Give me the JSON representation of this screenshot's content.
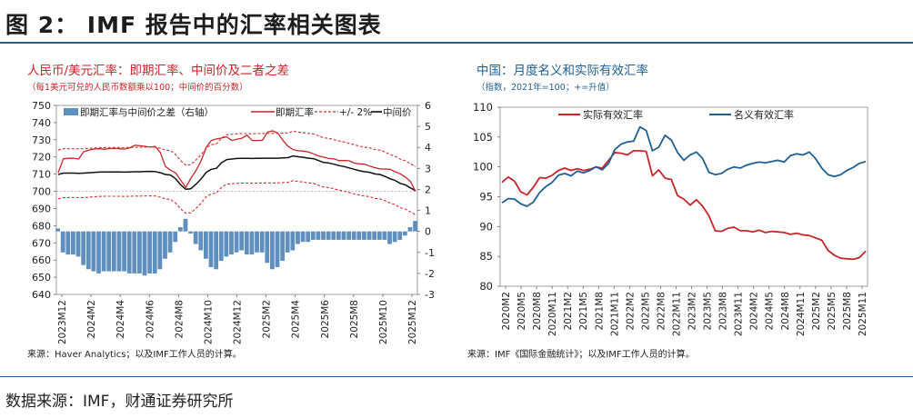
{
  "header": {
    "title": "图 2： IMF 报告中的汇率相关图表"
  },
  "footer": {
    "source": "数据来源：IMF，财通证券研究所"
  },
  "colors": {
    "accent_blue": "#1f5f96",
    "red": "#c8262a",
    "black": "#111111",
    "bar_blue": "#5e8fbf",
    "dashed_red": "#d0302e"
  },
  "chart_data": [
    {
      "type": "line",
      "title": "人民币/美元汇率：即期汇率、中间价及二者之差",
      "subtitle": "（每1美元可兑的人民币数额乘以100；中间价的百分数）",
      "source": "来源：Haver Analytics；以及IMF工作人员的计算。",
      "xlabel": "",
      "ylabel": "",
      "ylim": [
        640,
        750
      ],
      "y2lim": [
        -3,
        6
      ],
      "yticks": [
        "750",
        "740",
        "730",
        "720",
        "710",
        "700",
        "690",
        "680",
        "670",
        "660",
        "650",
        "640"
      ],
      "y2ticks": [
        "6",
        "5",
        "4",
        "3",
        "2",
        "1",
        "0",
        "-1",
        "-2",
        "-3"
      ],
      "xticks": [
        "2023M12",
        "2024M2",
        "2024M4",
        "2024M6",
        "2024M8",
        "2024M10",
        "2024M12",
        "2025M2",
        "2025M4",
        "2025M6",
        "2025M8",
        "2025M10",
        "2025M12"
      ],
      "legend": [
        "即期汇率与中间价之差（右轴）",
        "即期汇率",
        "+/- 2%",
        "中间价"
      ],
      "reference_line": 700,
      "series": [
        {
          "name": "中间价",
          "color": "#111111",
          "style": "solid",
          "axis": "left",
          "values": [
            709.8,
            710.6,
            710.6,
            710.6,
            710.5,
            710.6,
            710.8,
            711.0,
            711.2,
            711.3,
            711.3,
            711.3,
            711.3,
            711.2,
            711.3,
            711.4,
            711.4,
            711.5,
            711.6,
            711.5,
            710.8,
            709.8,
            709.5,
            707.3,
            703.8,
            701.2,
            701.5,
            704.2,
            707.2,
            711.1,
            712.8,
            713.4,
            716.7,
            718.5,
            718.8,
            719.1,
            719.2,
            719.2,
            719.1,
            719.2,
            719.3,
            719.3,
            719.3,
            719.3,
            719.5,
            719.6,
            720.6,
            720.1,
            719.8,
            719.3,
            719.0,
            717.9,
            716.8,
            716.5,
            715.8,
            715.0,
            714.4,
            713.6,
            712.8,
            712.0,
            711.4,
            711.1,
            710.1,
            709.8,
            708.7,
            707.3,
            706.3,
            704.6,
            703.7,
            702.0,
            700.4
          ]
        },
        {
          "name": "即期汇率",
          "color": "#c8262a",
          "style": "solid",
          "axis": "left",
          "values": [
            710.8,
            718.9,
            719.2,
            719.3,
            718.8,
            723.1,
            724.0,
            724.6,
            724.8,
            724.5,
            724.9,
            725.0,
            724.8,
            724.6,
            725.3,
            726.8,
            726.5,
            726.2,
            725.7,
            726.1,
            722.6,
            714.5,
            712.3,
            710.7,
            706.4,
            702.3,
            707.7,
            712.2,
            717.8,
            725.6,
            729.6,
            730.5,
            731.0,
            731.7,
            729.6,
            730.3,
            730.9,
            732.7,
            729.6,
            729.6,
            729.7,
            734.5,
            735.2,
            734.0,
            729.7,
            726.3,
            724.3,
            723.6,
            723.4,
            722.9,
            721.8,
            720.6,
            719.9,
            719.1,
            718.9,
            717.9,
            717.9,
            717.8,
            716.4,
            716.0,
            715.8,
            714.7,
            713.8,
            713.1,
            713.0,
            712.8,
            711.4,
            710.2,
            708.3,
            705.7,
            700.0
          ]
        },
        {
          "name": "+/- 2%",
          "color": "#d0302e",
          "style": "dashed",
          "axis": "left",
          "values": [
            724.0,
            724.8,
            724.8,
            724.8,
            724.7,
            724.8,
            725.0,
            725.2,
            725.4,
            725.5,
            725.5,
            725.5,
            725.5,
            725.4,
            725.5,
            725.6,
            725.6,
            725.7,
            725.8,
            725.7,
            725.0,
            724.0,
            723.7,
            721.4,
            717.9,
            715.2,
            715.5,
            718.3,
            721.3,
            725.3,
            727.1,
            727.7,
            731.0,
            732.9,
            733.2,
            733.5,
            733.6,
            733.6,
            733.5,
            733.6,
            733.7,
            733.7,
            733.7,
            733.7,
            733.9,
            734.0,
            735.0,
            734.5,
            734.2,
            733.7,
            733.4,
            732.3,
            731.1,
            730.8,
            730.1,
            729.3,
            728.7,
            727.9,
            727.1,
            726.3,
            725.6,
            725.3,
            724.3,
            724.0,
            722.9,
            721.4,
            720.4,
            718.7,
            717.8,
            716.0,
            714.4
          ]
        },
        {
          "name": "-2%",
          "color": "#d0302e",
          "style": "dashed",
          "axis": "left",
          "values": [
            695.6,
            696.4,
            696.4,
            696.4,
            696.3,
            696.4,
            696.6,
            696.8,
            697.0,
            697.1,
            697.1,
            697.1,
            697.1,
            697.0,
            697.1,
            697.2,
            697.2,
            697.3,
            697.4,
            697.3,
            696.6,
            695.6,
            695.3,
            693.2,
            689.7,
            687.2,
            687.5,
            690.1,
            693.1,
            696.9,
            698.5,
            699.1,
            702.4,
            704.1,
            704.4,
            704.7,
            704.8,
            704.8,
            704.7,
            704.8,
            704.9,
            704.9,
            704.9,
            704.9,
            705.1,
            705.2,
            706.2,
            705.7,
            705.4,
            704.9,
            704.6,
            703.5,
            702.5,
            702.2,
            701.5,
            700.7,
            700.1,
            699.3,
            698.5,
            697.8,
            697.2,
            696.9,
            695.9,
            695.6,
            694.5,
            693.2,
            692.2,
            690.5,
            689.6,
            688.0,
            686.4
          ]
        },
        {
          "name": "即期汇率与中间价之差（右轴）",
          "color": "#5e8fbf",
          "type": "bar",
          "axis": "right",
          "values": [
            0.14,
            -1.0,
            -1.1,
            -1.1,
            -1.2,
            -1.6,
            -1.8,
            -1.9,
            -2.0,
            -1.9,
            -1.9,
            -1.9,
            -1.9,
            -1.9,
            -2.0,
            -2.0,
            -2.0,
            -2.1,
            -2.0,
            -2.0,
            -1.8,
            -1.3,
            -1.0,
            -0.5,
            0.2,
            0.6,
            -0.1,
            -0.6,
            -0.9,
            -1.3,
            -1.7,
            -1.8,
            -1.4,
            -1.2,
            -1.1,
            -1.0,
            -0.9,
            -1.1,
            -1.1,
            -1.0,
            -1.0,
            -1.5,
            -1.8,
            -1.7,
            -1.4,
            -1.0,
            -0.9,
            -0.6,
            -0.5,
            -0.5,
            -0.4,
            -0.4,
            -0.4,
            -0.4,
            -0.4,
            -0.4,
            -0.4,
            -0.4,
            -0.4,
            -0.4,
            -0.4,
            -0.4,
            -0.4,
            -0.4,
            -0.4,
            -0.6,
            -0.5,
            -0.4,
            -0.2,
            0.2,
            0.5
          ]
        }
      ]
    },
    {
      "type": "line",
      "title": "中国：月度名义和实际有效汇率",
      "subtitle": "（指数，2021年=100；+=升值）",
      "source": "来源：IMF《国际金融统计》；以及IMF工作人员的计算。",
      "xlabel": "",
      "ylabel": "",
      "ylim": [
        80,
        110
      ],
      "yticks": [
        "110",
        "105",
        "100",
        "95",
        "90",
        "85",
        "80"
      ],
      "xticks": [
        "2020M2",
        "2020M5",
        "2020M8",
        "2020M11",
        "2021M2",
        "2021M5",
        "2021M8",
        "2021M11",
        "2022M2",
        "2022M5",
        "2022M8",
        "2022M11",
        "2023M2",
        "2023M5",
        "2023M8",
        "2023M11",
        "2024M2",
        "2024M5",
        "2024M8",
        "2024M11",
        "2025M2",
        "2025M5",
        "2025M8",
        "2025M11"
      ],
      "legend": [
        "实际有效汇率",
        "名义有效汇率"
      ],
      "series": [
        {
          "name": "实际有效汇率",
          "color": "#c8262a",
          "values": [
            97.4,
            98.3,
            97.6,
            95.8,
            95.3,
            96.6,
            98.2,
            98.1,
            98.6,
            99.4,
            99.8,
            99.4,
            99.7,
            99.4,
            99.6,
            100.0,
            99.8,
            101.1,
            102.4,
            102.3,
            102.0,
            102.7,
            102.7,
            102.6,
            98.5,
            99.5,
            98.1,
            97.9,
            95.2,
            94.6,
            93.6,
            94.5,
            93.4,
            91.8,
            89.3,
            89.2,
            89.7,
            89.9,
            89.3,
            89.3,
            89.1,
            89.4,
            89.0,
            89.2,
            89.1,
            89.0,
            88.7,
            88.9,
            88.6,
            88.5,
            88.1,
            87.7,
            86.0,
            85.2,
            84.7,
            84.6,
            84.5,
            84.8,
            85.9
          ]
        },
        {
          "name": "名义有效汇率",
          "color": "#1f5f96",
          "values": [
            94.0,
            94.7,
            94.6,
            93.8,
            93.4,
            94.1,
            95.7,
            96.7,
            97.4,
            98.6,
            98.9,
            98.5,
            99.3,
            99.0,
            99.4,
            100.0,
            99.5,
            100.6,
            102.9,
            103.8,
            104.2,
            104.3,
            106.7,
            106.1,
            102.7,
            103.3,
            105.3,
            104.5,
            102.4,
            101.1,
            102.0,
            102.5,
            101.4,
            99.1,
            98.7,
            98.9,
            99.6,
            100.0,
            99.8,
            100.3,
            100.6,
            100.8,
            100.7,
            100.9,
            101.1,
            100.8,
            101.9,
            102.2,
            102.0,
            102.5,
            101.4,
            99.8,
            98.7,
            98.4,
            98.7,
            99.4,
            99.9,
            100.6,
            100.9
          ]
        }
      ]
    }
  ]
}
